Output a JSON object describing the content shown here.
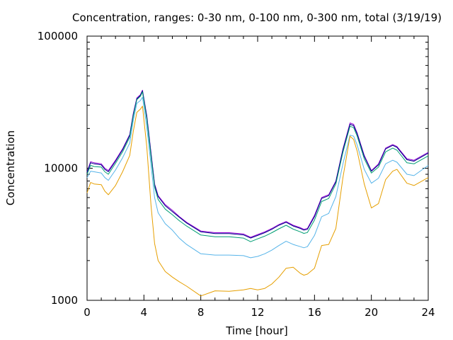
{
  "chart_data": {
    "type": "line",
    "title": "Concentration, ranges: 0-30 nm, 0-100 nm, 0-300 nm, total (3/19/19)",
    "xlabel": "Time [hour]",
    "ylabel": "Concentration",
    "xlim": [
      0,
      24
    ],
    "ylim": [
      1000,
      100000
    ],
    "yscale": "log",
    "grid": false,
    "legend": "none",
    "xticks": [
      0,
      4,
      8,
      12,
      16,
      20,
      24
    ],
    "xtick_labels": [
      "0",
      "4",
      "8",
      "12",
      "16",
      "20",
      "24"
    ],
    "yticks": [
      1000,
      10000,
      100000
    ],
    "ytick_labels": [
      "1000",
      "10000",
      "100000"
    ],
    "x": [
      0,
      0.25,
      0.5,
      1,
      1.25,
      1.5,
      2,
      2.5,
      3,
      3.25,
      3.5,
      3.75,
      3.9,
      4.2,
      4.5,
      4.75,
      5,
      5.5,
      6,
      6.5,
      7,
      8,
      9,
      10,
      11,
      11.5,
      12,
      12.5,
      13,
      13.5,
      14,
      14.5,
      15,
      15.25,
      15.5,
      16,
      16.5,
      17,
      17.5,
      18,
      18.5,
      18.75,
      19,
      19.5,
      20,
      20.5,
      21,
      21.5,
      21.8,
      22.5,
      23,
      24
    ],
    "series": [
      {
        "color": "#9400d3",
        "values": [
          9400,
          11200,
          11000,
          10800,
          10000,
          9600,
          11500,
          14000,
          18000,
          26000,
          34000,
          36000,
          39000,
          25000,
          13000,
          7600,
          6200,
          5300,
          4800,
          4300,
          3900,
          3350,
          3250,
          3250,
          3180,
          3000,
          3150,
          3300,
          3500,
          3750,
          3950,
          3700,
          3550,
          3450,
          3500,
          4400,
          6000,
          6300,
          8000,
          14000,
          22000,
          21500,
          18500,
          12500,
          9600,
          10800,
          14200,
          15100,
          14600,
          11800,
          11500,
          13200
        ]
      },
      {
        "color": "#00008b",
        "values": [
          9300,
          11000,
          10800,
          10600,
          9800,
          9400,
          11300,
          13800,
          17800,
          25500,
          33500,
          35500,
          38500,
          24500,
          12800,
          7500,
          6100,
          5200,
          4700,
          4250,
          3850,
          3300,
          3200,
          3200,
          3130,
          2960,
          3100,
          3250,
          3450,
          3700,
          3900,
          3650,
          3500,
          3400,
          3450,
          4300,
          5900,
          6200,
          7900,
          13800,
          21500,
          21000,
          18200,
          12300,
          9500,
          10600,
          14000,
          14900,
          14400,
          11600,
          11300,
          13000
        ]
      },
      {
        "color": "#009e73",
        "values": [
          9000,
          10500,
          10300,
          10200,
          9400,
          9000,
          10900,
          13300,
          17200,
          24800,
          33000,
          35000,
          37800,
          23500,
          12200,
          7200,
          5800,
          4900,
          4450,
          4000,
          3650,
          3120,
          3030,
          3030,
          2960,
          2780,
          2920,
          3060,
          3250,
          3480,
          3700,
          3460,
          3300,
          3210,
          3260,
          4050,
          5600,
          5900,
          7600,
          13200,
          20800,
          20300,
          17500,
          11800,
          9200,
          10200,
          13300,
          14200,
          13700,
          11000,
          10800,
          12400
        ]
      },
      {
        "color": "#56b4e9",
        "values": [
          8500,
          9500,
          9400,
          9200,
          8500,
          8100,
          9700,
          12000,
          15500,
          23000,
          31000,
          32500,
          34500,
          20500,
          10500,
          6000,
          4600,
          3800,
          3400,
          2950,
          2650,
          2250,
          2200,
          2200,
          2180,
          2100,
          2150,
          2250,
          2400,
          2600,
          2800,
          2650,
          2550,
          2500,
          2550,
          3100,
          4300,
          4550,
          6100,
          10800,
          17800,
          17500,
          15000,
          9800,
          7700,
          8400,
          10800,
          11500,
          11100,
          9000,
          8800,
          10500
        ]
      },
      {
        "color": "#e69f00",
        "values": [
          6500,
          7800,
          7600,
          7500,
          6700,
          6300,
          7400,
          9400,
          12500,
          19000,
          26500,
          28000,
          29500,
          14500,
          5200,
          2700,
          2000,
          1650,
          1500,
          1380,
          1280,
          1080,
          1180,
          1170,
          1200,
          1230,
          1200,
          1230,
          1330,
          1500,
          1750,
          1780,
          1600,
          1550,
          1580,
          1750,
          2600,
          2650,
          3500,
          8500,
          17500,
          16500,
          13500,
          7600,
          5000,
          5400,
          8200,
          9500,
          9800,
          7700,
          7400,
          8500
        ]
      }
    ]
  }
}
